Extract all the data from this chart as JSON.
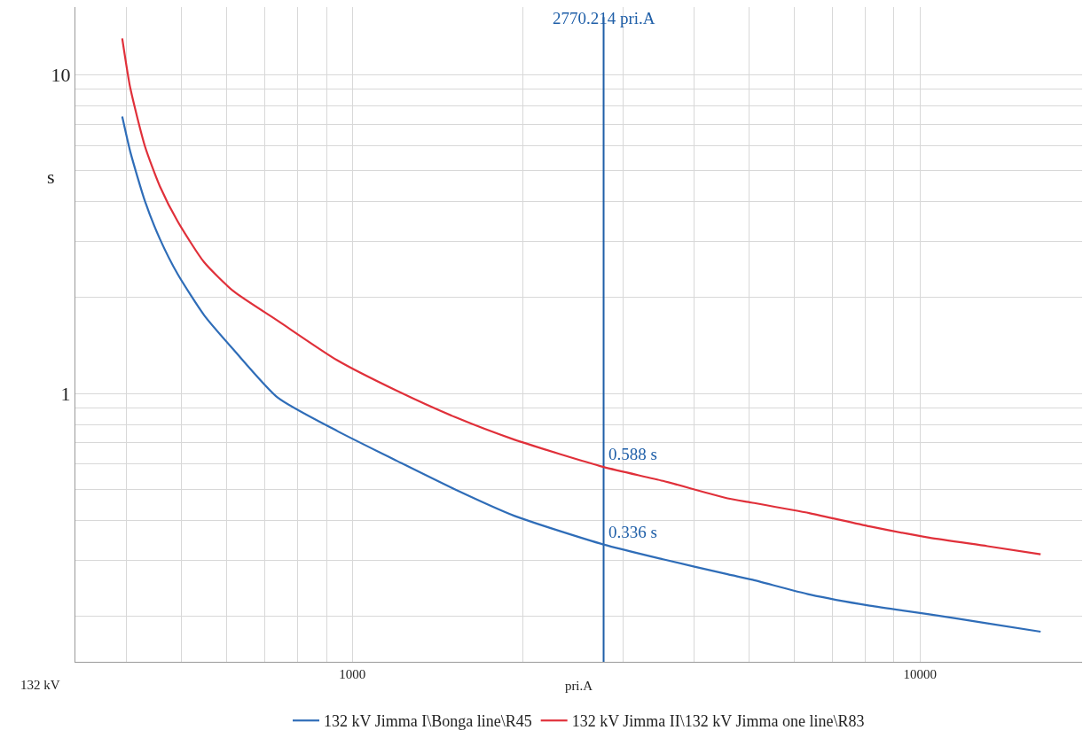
{
  "chart_data": {
    "type": "line",
    "xlabel": "pri.A",
    "ylabel": "s",
    "log": "xy",
    "grid": true,
    "legend": "bottom",
    "marker": "none",
    "line_style": "solid",
    "xlim": [
      325,
      19300
    ],
    "ylim": [
      0.144,
      16.3
    ],
    "xticks": [
      {
        "value": 400,
        "label": null
      },
      {
        "value": 500,
        "label": null
      },
      {
        "value": 600,
        "label": null
      },
      {
        "value": 700,
        "label": null
      },
      {
        "value": 800,
        "label": null
      },
      {
        "value": 900,
        "label": null
      },
      1000,
      {
        "value": 2000,
        "label": null
      },
      {
        "value": 3000,
        "label": null
      },
      {
        "value": 4000,
        "label": null
      },
      {
        "value": 5000,
        "label": null
      },
      {
        "value": 6000,
        "label": null
      },
      {
        "value": 7000,
        "label": null
      },
      {
        "value": 8000,
        "label": null
      },
      {
        "value": 9000,
        "label": null
      },
      10000
    ],
    "yticks": [
      {
        "value": 0.2,
        "label": null
      },
      {
        "value": 0.3,
        "label": null
      },
      {
        "value": 0.4,
        "label": null
      },
      {
        "value": 0.5,
        "label": null
      },
      {
        "value": 0.6,
        "label": null
      },
      {
        "value": 0.7,
        "label": null
      },
      {
        "value": 0.8,
        "label": null
      },
      {
        "value": 0.9,
        "label": null
      },
      1,
      {
        "value": 2,
        "label": null
      },
      {
        "value": 3,
        "label": null
      },
      {
        "value": 4,
        "label": null
      },
      {
        "value": 5,
        "label": null
      },
      {
        "value": 6,
        "label": null
      },
      {
        "value": 7,
        "label": null
      },
      {
        "value": 8,
        "label": null
      },
      {
        "value": 9,
        "label": null
      },
      10
    ],
    "series": [
      {
        "name": "132 kV Jimma I\\Bonga line\\R45",
        "color": "#2f6db8",
        "x": [
          393,
          406,
          431,
          458,
          492,
          548,
          618,
          739,
          941,
          1197,
          1517,
          1931,
          2770.214,
          3524,
          4580,
          5045,
          6400,
          8150,
          10380,
          13150,
          16310
        ],
        "values": [
          7.39,
          5.74,
          4.01,
          3.05,
          2.37,
          1.76,
          1.37,
          0.97,
          0.762,
          0.615,
          0.5,
          0.413,
          0.336,
          0.302,
          0.271,
          0.261,
          0.234,
          0.216,
          0.203,
          0.19,
          0.179
        ]
      },
      {
        "name": "132 kV Jimma II\\132 kV Jimma one line\\R83",
        "color": "#e0303a",
        "x": [
          393,
          406,
          431,
          458,
          492,
          548,
          618,
          739,
          941,
          1197,
          1517,
          1931,
          2770.214,
          3524,
          4580,
          5045,
          6400,
          8150,
          10380,
          13150,
          16310
        ],
        "values": [
          13.0,
          9.1,
          5.96,
          4.46,
          3.47,
          2.58,
          2.09,
          1.69,
          1.27,
          1.02,
          0.843,
          0.716,
          0.588,
          0.532,
          0.469,
          0.455,
          0.421,
          0.383,
          0.353,
          0.332,
          0.313
        ]
      }
    ],
    "ref_lines": [
      {
        "axis": "x",
        "value": 2770.214,
        "label": "2770.214 pri.A",
        "color": "#1f5fa8"
      }
    ],
    "annotations": [
      {
        "text": "0.588 s",
        "x": 2770.214,
        "y": 0.588
      },
      {
        "text": "0.336 s",
        "x": 2770.214,
        "y": 0.336
      },
      "132 kV"
    ]
  }
}
